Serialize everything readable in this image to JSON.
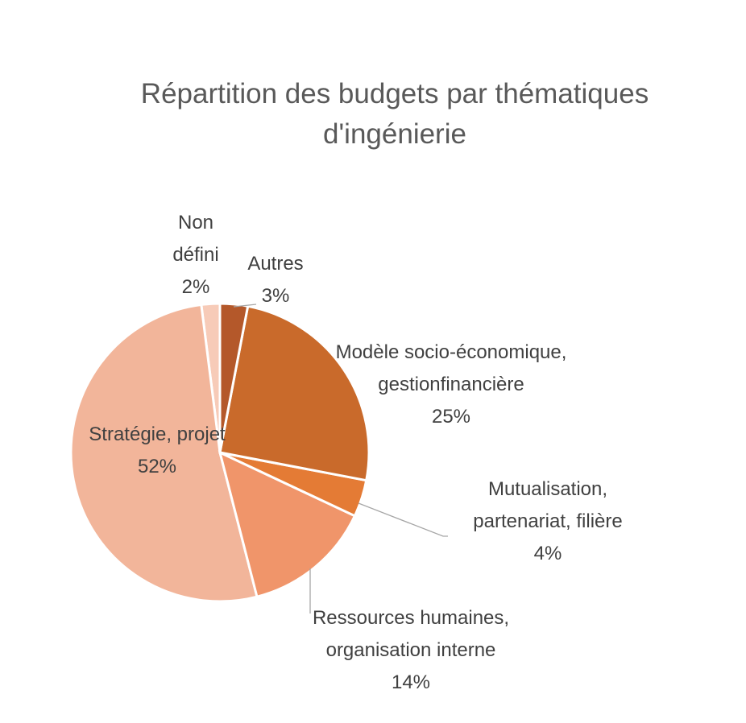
{
  "chart_data": {
    "type": "pie",
    "title": "Répartition des budgets par thématiques d'ingénierie",
    "categories": [
      "Autres",
      "Modèle socio-économique, gestionfinancière",
      "Mutualisation, partenariat, filière",
      "Ressources humaines, organisation interne",
      "Stratégie, projet",
      "Non défini"
    ],
    "values": [
      3,
      25,
      4,
      14,
      52,
      2
    ],
    "value_labels": [
      "3%",
      "25%",
      "4%",
      "14%",
      "52%",
      "2%"
    ],
    "colors": [
      "#b4582a",
      "#c96a2b",
      "#e47b35",
      "#f0956a",
      "#f2b59a",
      "#f7cbb8"
    ]
  }
}
